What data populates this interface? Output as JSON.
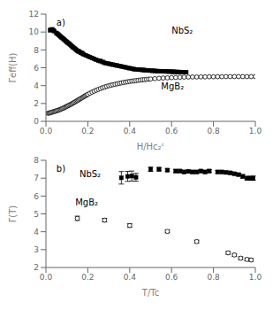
{
  "chart_data": [
    {
      "type": "scatter",
      "title": "a)",
      "x_label": "H/Hc₂ᶜ",
      "y_label": "Γeff(H)",
      "xlim": [
        0,
        1.0
      ],
      "ylim": [
        0,
        12
      ],
      "xticks": [
        {
          "value": 0.0,
          "label": "0.0"
        },
        0.2,
        0.4,
        0.6,
        0.8,
        {
          "value": 1.0,
          "label": "1.0"
        }
      ],
      "yticks": [
        0,
        2,
        4,
        6,
        8,
        10,
        12
      ],
      "grid": false,
      "series": [
        {
          "name": "NbS₂",
          "color": "#000000",
          "marker": "square",
          "x": [
            0.02,
            0.025,
            0.03,
            0.035,
            0.04,
            0.05,
            0.055,
            0.06,
            0.065,
            0.07,
            0.075,
            0.08,
            0.085,
            0.09,
            0.095,
            0.1,
            0.105,
            0.11,
            0.115,
            0.12,
            0.125,
            0.13,
            0.135,
            0.14,
            0.145,
            0.15,
            0.155,
            0.16,
            0.165,
            0.17,
            0.175,
            0.18,
            0.19,
            0.2,
            0.21,
            0.22,
            0.23,
            0.24,
            0.25,
            0.26,
            0.27,
            0.28,
            0.29,
            0.3,
            0.31,
            0.32,
            0.33,
            0.34,
            0.35,
            0.36,
            0.37,
            0.38,
            0.39,
            0.4,
            0.41,
            0.42,
            0.43,
            0.44,
            0.45,
            0.46,
            0.47,
            0.48,
            0.49,
            0.5,
            0.51,
            0.52,
            0.53,
            0.54,
            0.55,
            0.56,
            0.57,
            0.58,
            0.59,
            0.6,
            0.61,
            0.62,
            0.63,
            0.64,
            0.65,
            0.66,
            0.67
          ],
          "values": [
            10.2,
            10.25,
            10.3,
            10.2,
            10.1,
            9.9,
            9.8,
            9.7,
            9.6,
            9.5,
            9.4,
            9.3,
            9.2,
            9.1,
            9.0,
            8.9,
            8.8,
            8.7,
            8.6,
            8.5,
            8.4,
            8.3,
            8.2,
            8.1,
            8.0,
            7.9,
            7.85,
            7.8,
            7.7,
            7.65,
            7.6,
            7.5,
            7.4,
            7.3,
            7.2,
            7.1,
            7.0,
            6.9,
            6.8,
            6.75,
            6.65,
            6.55,
            6.5,
            6.45,
            6.4,
            6.35,
            6.3,
            6.25,
            6.2,
            6.15,
            6.1,
            6.05,
            6.0,
            5.95,
            5.9,
            5.85,
            5.82,
            5.8,
            5.78,
            5.76,
            5.74,
            5.72,
            5.7,
            5.68,
            5.66,
            5.65,
            5.63,
            5.62,
            5.61,
            5.6,
            5.59,
            5.58,
            5.57,
            5.56,
            5.55,
            5.54,
            5.53,
            5.52,
            5.51,
            5.5,
            5.5
          ]
        },
        {
          "name": "MgB₂",
          "color": "#000000",
          "marker": "open_circle",
          "x": [
            0.01,
            0.015,
            0.02,
            0.025,
            0.03,
            0.035,
            0.04,
            0.045,
            0.05,
            0.055,
            0.06,
            0.065,
            0.07,
            0.075,
            0.08,
            0.085,
            0.09,
            0.095,
            0.1,
            0.105,
            0.11,
            0.115,
            0.12,
            0.125,
            0.13,
            0.135,
            0.14,
            0.145,
            0.15,
            0.155,
            0.16,
            0.165,
            0.17,
            0.175,
            0.18,
            0.185,
            0.19,
            0.195,
            0.2,
            0.21,
            0.22,
            0.23,
            0.24,
            0.25,
            0.26,
            0.27,
            0.28,
            0.29,
            0.3,
            0.31,
            0.32,
            0.33,
            0.34,
            0.35,
            0.36,
            0.37,
            0.38,
            0.39,
            0.4,
            0.41,
            0.42,
            0.43,
            0.44,
            0.45,
            0.46,
            0.47,
            0.48,
            0.49,
            0.5,
            0.52,
            0.54,
            0.56,
            0.58,
            0.6,
            0.62,
            0.64,
            0.66,
            0.68,
            0.7,
            0.72,
            0.74,
            0.76,
            0.78,
            0.8,
            0.82,
            0.84,
            0.86,
            0.88,
            0.9,
            0.92,
            0.94,
            0.96,
            0.98,
            1.0
          ],
          "values": [
            0.9,
            0.93,
            0.96,
            1.0,
            1.03,
            1.07,
            1.1,
            1.14,
            1.18,
            1.22,
            1.26,
            1.3,
            1.35,
            1.4,
            1.45,
            1.5,
            1.56,
            1.62,
            1.68,
            1.74,
            1.8,
            1.86,
            1.92,
            1.98,
            2.05,
            2.12,
            2.19,
            2.26,
            2.33,
            2.4,
            2.47,
            2.54,
            2.61,
            2.68,
            2.75,
            2.82,
            2.89,
            2.96,
            3.03,
            3.15,
            3.27,
            3.38,
            3.48,
            3.58,
            3.67,
            3.76,
            3.84,
            3.91,
            3.98,
            4.04,
            4.1,
            4.15,
            4.2,
            4.25,
            4.3,
            4.35,
            4.39,
            4.43,
            4.47,
            4.5,
            4.53,
            4.56,
            4.59,
            4.62,
            4.65,
            4.67,
            4.7,
            4.72,
            4.74,
            4.78,
            4.82,
            4.85,
            4.87,
            4.89,
            4.91,
            4.93,
            4.95,
            4.96,
            4.97,
            4.97,
            4.98,
            4.98,
            4.99,
            4.99,
            5.0,
            5.0,
            5.01,
            5.01,
            5.01,
            5.01,
            5.01,
            5.01,
            5.01,
            5.01
          ]
        }
      ]
    },
    {
      "type": "scatter",
      "title": "b)",
      "x_label": "T/Tc",
      "y_label": "Γ(T)",
      "xlim": [
        0,
        1.0
      ],
      "ylim": [
        2,
        8
      ],
      "xticks": [
        {
          "value": 0.0,
          "label": "0.0"
        },
        0.2,
        0.4,
        0.6,
        0.8,
        {
          "value": 1.0,
          "label": "1.0"
        }
      ],
      "yticks": [
        2,
        3,
        4,
        5,
        6,
        7,
        8
      ],
      "grid": false,
      "series": [
        {
          "name": "NbS₂",
          "color": "#000000",
          "marker": "square",
          "x": [
            0.36,
            0.39,
            0.41,
            0.43,
            0.5,
            0.54,
            0.58,
            0.62,
            0.64,
            0.66,
            0.68,
            0.7,
            0.72,
            0.74,
            0.76,
            0.78,
            0.82,
            0.84,
            0.86,
            0.88,
            0.9,
            0.92,
            0.94,
            0.96,
            0.975,
            0.99
          ],
          "values": [
            7.02,
            7.1,
            7.12,
            7.05,
            7.5,
            7.5,
            7.45,
            7.4,
            7.4,
            7.35,
            7.38,
            7.35,
            7.35,
            7.4,
            7.35,
            7.4,
            7.35,
            7.35,
            7.32,
            7.3,
            7.25,
            7.2,
            7.1,
            7.0,
            7.0,
            7.0
          ],
          "yerr": [
            0.35,
            0.28,
            0.28,
            0.22,
            0.12,
            0.1,
            0.08,
            0.08,
            0.08,
            0.08,
            0.08,
            0.08,
            0.08,
            0.08,
            0.08,
            0.08,
            0.08,
            0.08,
            0.08,
            0.08,
            0.08,
            0.08,
            0.1,
            0.1,
            0.1,
            0.12
          ]
        },
        {
          "name": "MgB₂",
          "color": "#000000",
          "marker": "open_circle",
          "x": [
            0.15,
            0.28,
            0.4,
            0.58,
            0.72,
            0.87,
            0.9,
            0.93,
            0.96,
            0.98
          ],
          "values": [
            4.75,
            4.65,
            4.35,
            4.02,
            3.45,
            2.82,
            2.7,
            2.52,
            2.45,
            2.42
          ],
          "yerr": [
            0.12,
            0.1,
            0.1,
            0.08,
            0.08,
            0.08,
            0.08,
            0.08,
            0.08,
            0.08
          ]
        }
      ]
    }
  ]
}
